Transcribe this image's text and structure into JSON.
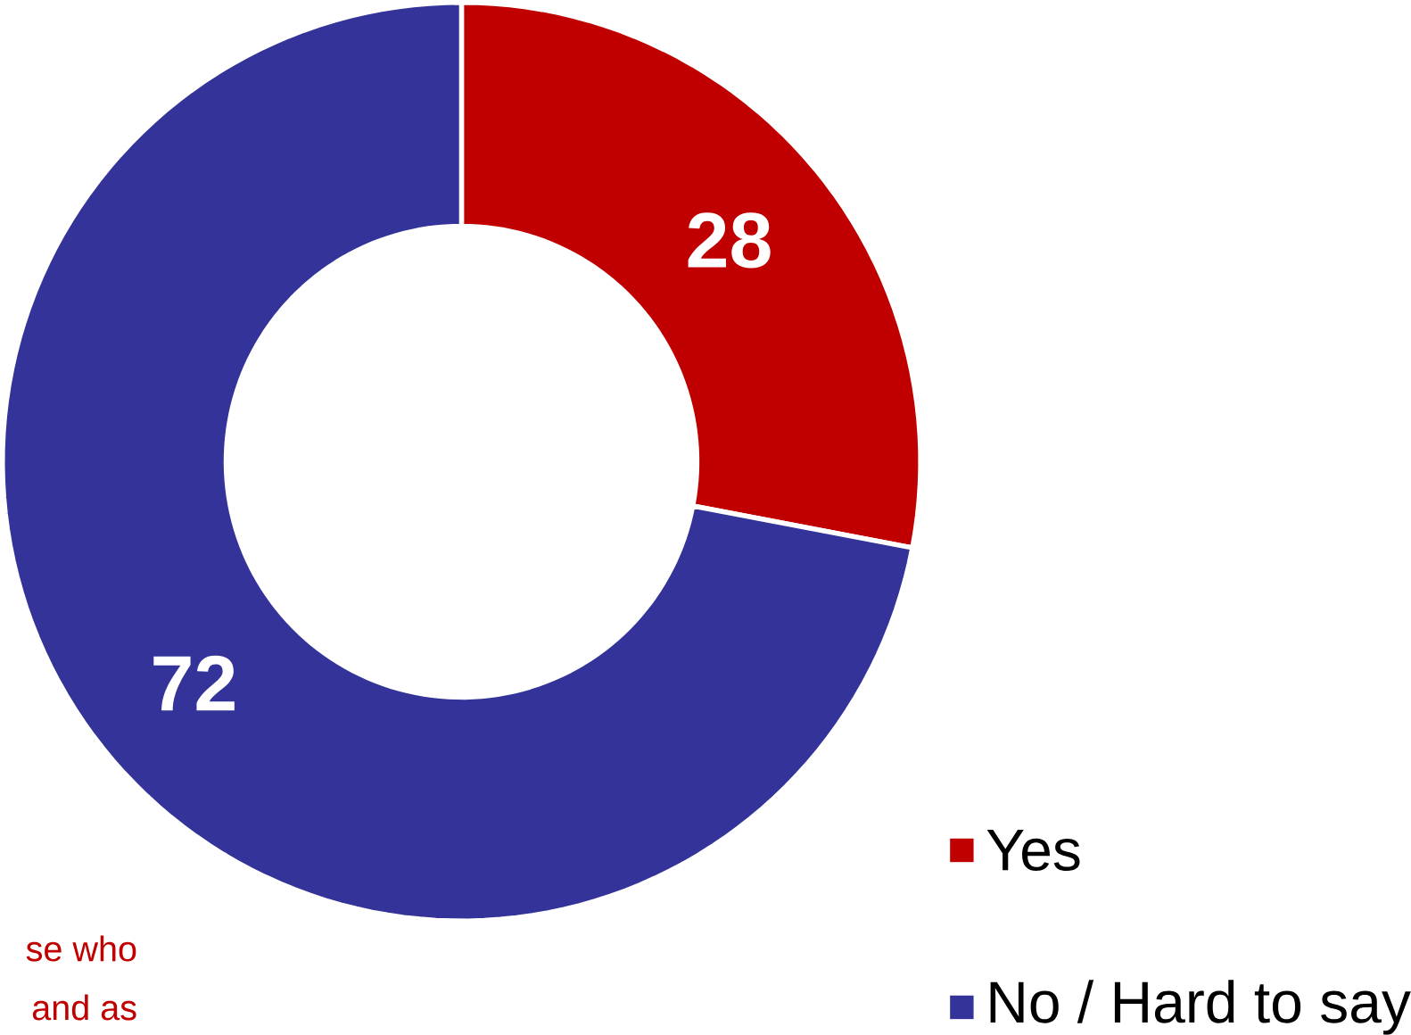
{
  "chart_data": {
    "type": "donut",
    "categories": [
      "Yes",
      "No / Hard to say"
    ],
    "values": [
      28,
      72
    ],
    "colors": [
      "#c00000",
      "#333399"
    ],
    "data_labels": true,
    "legend": "bottom right",
    "annotations": [
      "se who",
      "and as"
    ]
  }
}
